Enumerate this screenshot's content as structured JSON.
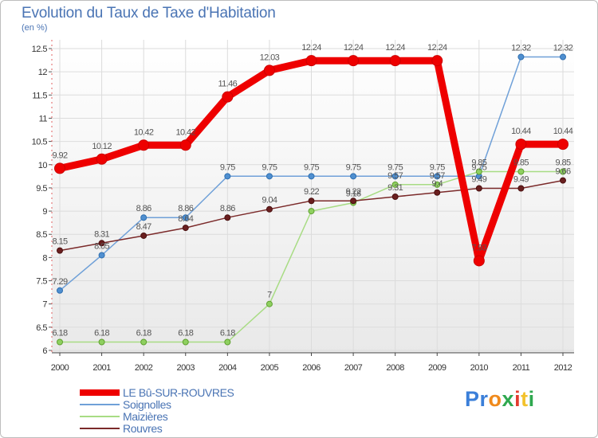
{
  "header": {
    "title": "Evolution du Taux de Taxe d'Habitation",
    "unit": "(en %)"
  },
  "logo": {
    "text": "Proxiti",
    "letters": [
      "P",
      "r",
      "o",
      "x",
      "i",
      "t",
      "i"
    ],
    "colors": [
      "#3b7fd9",
      "#3b7fd9",
      "#f08a1c",
      "#2fa84f",
      "#e33b2e",
      "#f3c22b",
      "#2fa84f"
    ]
  },
  "chart_data": {
    "type": "line",
    "title": "Evolution du Taux de Taxe d'Habitation",
    "ylabel": "(en %)",
    "xlabel": "",
    "x": [
      "2000",
      "2001",
      "2002",
      "2003",
      "2004",
      "2005",
      "2006",
      "2007",
      "2008",
      "2009",
      "2010",
      "2011",
      "2012"
    ],
    "ylim": [
      6,
      12.5
    ],
    "yticks": [
      "6",
      "6.5",
      "7",
      "7.5",
      "8",
      "8.5",
      "9",
      "9.5",
      "10",
      "10.5",
      "11",
      "11.5",
      "12",
      "12.5"
    ],
    "grid": true,
    "series": [
      {
        "name": "LE Bû-SUR-ROUVRES",
        "color": "#ee0000",
        "values": [
          9.92,
          10.12,
          10.42,
          10.42,
          11.46,
          12.03,
          12.24,
          12.24,
          12.24,
          12.24,
          7.93,
          10.44,
          10.44
        ],
        "labels": [
          "9.92",
          "10.12",
          "10.42",
          "10.42",
          "11.46",
          "12.03",
          "12.24",
          "12.24",
          "12.24",
          "12.24",
          "7.93",
          "10.44",
          "10.44"
        ]
      },
      {
        "name": "Soignolles",
        "color": "#6fa0d8",
        "values": [
          7.29,
          8.05,
          8.86,
          8.86,
          9.75,
          9.75,
          9.75,
          9.75,
          9.75,
          9.75,
          9.75,
          12.32,
          12.32
        ],
        "labels": [
          "7.29",
          "8.05",
          "8.86",
          "8.86",
          "9.75",
          "9.75",
          "9.75",
          "9.75",
          "9.75",
          "9.75",
          "9.75",
          "12.32",
          "12.32"
        ]
      },
      {
        "name": "Maizières",
        "color": "#a8dc84",
        "values": [
          6.18,
          6.18,
          6.18,
          6.18,
          6.18,
          7.0,
          9.0,
          9.18,
          9.57,
          9.57,
          9.85,
          9.85,
          9.85
        ],
        "labels": [
          "6.18",
          "6.18",
          "6.18",
          "6.18",
          "6.18",
          "7",
          "",
          "9.18",
          "9.57",
          "9.57",
          "9.85",
          "9.85",
          "9.85"
        ]
      },
      {
        "name": "Rouvres",
        "color": "#7b2a2a",
        "values": [
          8.15,
          8.31,
          8.47,
          8.64,
          8.86,
          9.04,
          9.22,
          9.22,
          9.31,
          9.4,
          9.49,
          9.49,
          9.66
        ],
        "labels": [
          "8.15",
          "8.31",
          "8.47",
          "8.64",
          "8.86",
          "9.04",
          "9.22",
          "9.22",
          "9.31",
          "9.4",
          "9.49",
          "9.49",
          "9.66"
        ]
      }
    ]
  }
}
